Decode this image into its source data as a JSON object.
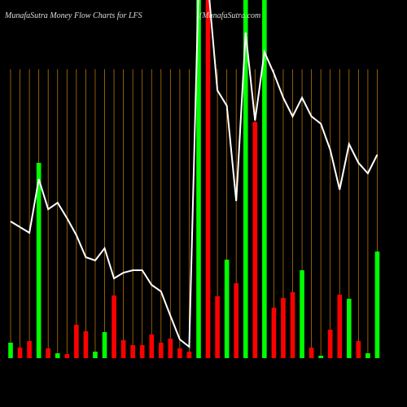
{
  "chart_data": {
    "type": "bar",
    "title": "MunafaSutra  Money Flow  Charts for LFS",
    "subtitle": "(MunafaSutra.com",
    "categories": [
      null,
      null,
      null,
      null,
      null,
      null,
      null,
      null,
      null,
      null,
      null,
      null,
      null,
      null,
      null,
      null,
      null,
      null,
      null,
      null,
      null,
      null,
      null,
      null,
      null,
      null,
      null,
      null,
      null,
      null,
      null,
      null,
      null,
      null,
      null,
      null,
      null,
      null,
      null,
      null
    ],
    "values": [
      19,
      13,
      21,
      240,
      12,
      6,
      5,
      41,
      33,
      8,
      32,
      77,
      22,
      16,
      16,
      29,
      19,
      24,
      12,
      8,
      440,
      440,
      76,
      121,
      92,
      440,
      290,
      440,
      62,
      74,
      81,
      108,
      13,
      3,
      35,
      78,
      73,
      21,
      6,
      131
    ],
    "colors": [
      "#00ff00",
      "#ff0000",
      "#ff0000",
      "#00ff00",
      "#ff0000",
      "#00ff00",
      "#ff0000",
      "#ff0000",
      "#ff0000",
      "#00ff00",
      "#00ff00",
      "#ff0000",
      "#ff0000",
      "#ff0000",
      "#ff0000",
      "#ff0000",
      "#ff0000",
      "#ff0000",
      "#ff0000",
      "#ff0000",
      "#00ff00",
      "#ff0000",
      "#ff0000",
      "#00ff00",
      "#ff0000",
      "#00ff00",
      "#ff0000",
      "#00ff00",
      "#ff0000",
      "#ff0000",
      "#ff0000",
      "#00ff00",
      "#ff0000",
      "#00ff00",
      "#ff0000",
      "#ff0000",
      "#00ff00",
      "#ff0000",
      "#00ff00",
      "#00ff00"
    ],
    "line": {
      "color": "#ffffff",
      "values": [
        168,
        161,
        154,
        220,
        183,
        191,
        172,
        151,
        124,
        120,
        135,
        98,
        105,
        108,
        108,
        90,
        82,
        52,
        23,
        14,
        460,
        460,
        329,
        310,
        193,
        400,
        292,
        376,
        350,
        320,
        297,
        320,
        297,
        288,
        256,
        207,
        263,
        240,
        227,
        250
      ]
    },
    "ylim": [
      0,
      440
    ],
    "grid_color": "#b8730b"
  }
}
